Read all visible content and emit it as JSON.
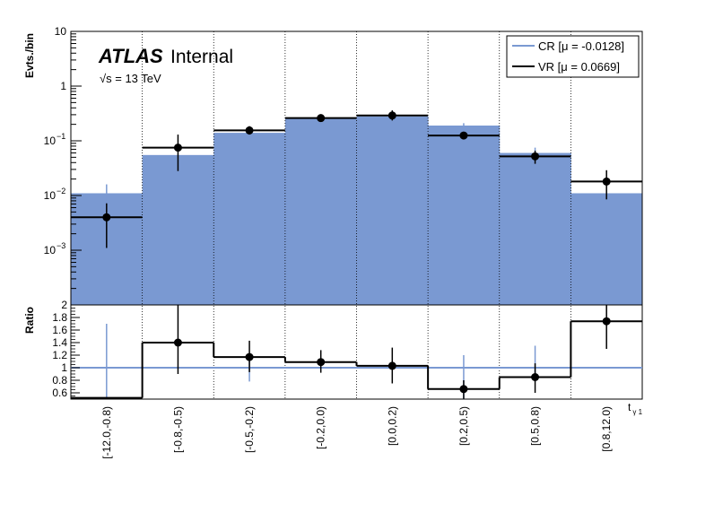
{
  "chart_data": [
    {
      "type": "bar",
      "yscale": "log",
      "ylabel": "Evts./bin",
      "ylim": [
        0.0001,
        10
      ],
      "y_ticks": [
        {
          "value": 10,
          "label": "10",
          "exp": ""
        },
        {
          "value": 1,
          "label": "1",
          "exp": ""
        },
        {
          "value": 0.1,
          "label": "10",
          "exp": "−1"
        },
        {
          "value": 0.01,
          "label": "10",
          "exp": "−2"
        },
        {
          "value": 0.001,
          "label": "10",
          "exp": "−3"
        }
      ],
      "categories": [
        "[-12.0,-0.8)",
        "[-0.8,-0.5)",
        "[-0.5,-0.2)",
        "[-0.2,0.0)",
        "[0.0,0.2)",
        "[0.2,0.5)",
        "[0.5,0.8)",
        "[0.8,12.0)"
      ],
      "series": [
        {
          "name": "CR [μ = -0.0128]",
          "color": "#7a99d2",
          "values": [
            0.011,
            0.055,
            0.14,
            0.26,
            0.28,
            0.19,
            0.06,
            0.011
          ],
          "err_low": [
            0.004,
            0,
            0,
            0,
            0,
            0,
            0,
            0
          ],
          "err_high": [
            0.016,
            0,
            0,
            0,
            0,
            0.21,
            0.075,
            0
          ]
        },
        {
          "name": "VR [μ = 0.0669]",
          "color": "#000000",
          "values": [
            0.004,
            0.075,
            0.155,
            0.26,
            0.29,
            0.125,
            0.052,
            0.018
          ],
          "err_low": [
            0.0011,
            0.028,
            0.13,
            0.235,
            0.235,
            0.11,
            0.038,
            0.0085
          ],
          "err_high": [
            0.0072,
            0.13,
            0.185,
            0.29,
            0.36,
            0.145,
            0.066,
            0.029
          ]
        }
      ],
      "annotations": {
        "experiment": "ATLAS",
        "status": "Internal",
        "energy": "√s = 13 TeV"
      },
      "legend_position": "top-right"
    },
    {
      "type": "line",
      "ylabel": "Ratio",
      "xlabel": "t",
      "xlabel_sub": "γ 1",
      "ylim": [
        0.5,
        2.0
      ],
      "y_tick_labels": [
        "0.6",
        "0.8",
        "1",
        "1.2",
        "1.4",
        "1.6",
        "1.8",
        "2"
      ],
      "categories": [
        "[-12.0,-0.8)",
        "[-0.8,-0.5)",
        "[-0.5,-0.2)",
        "[-0.2,0.0)",
        "[0.0,0.2)",
        "[0.2,0.5)",
        "[0.5,0.8)",
        "[0.8,12.0)"
      ],
      "reference_line": 1.0,
      "ratio": [
        0.52,
        1.4,
        1.17,
        1.09,
        1.03,
        0.66,
        0.85,
        1.74
      ],
      "err_low": [
        0.5,
        0.9,
        0.93,
        0.92,
        0.75,
        0.5,
        0.6,
        1.3
      ],
      "err_high": [
        0.52,
        2.0,
        1.43,
        1.28,
        1.32,
        0.8,
        1.07,
        2.0
      ],
      "cr_err_low": [
        0.5,
        1.0,
        0.78,
        1.0,
        1.0,
        0.5,
        0.78,
        1.0
      ],
      "cr_err_high": [
        1.7,
        1.0,
        1.2,
        1.0,
        1.0,
        1.2,
        1.35,
        1.0
      ]
    }
  ]
}
